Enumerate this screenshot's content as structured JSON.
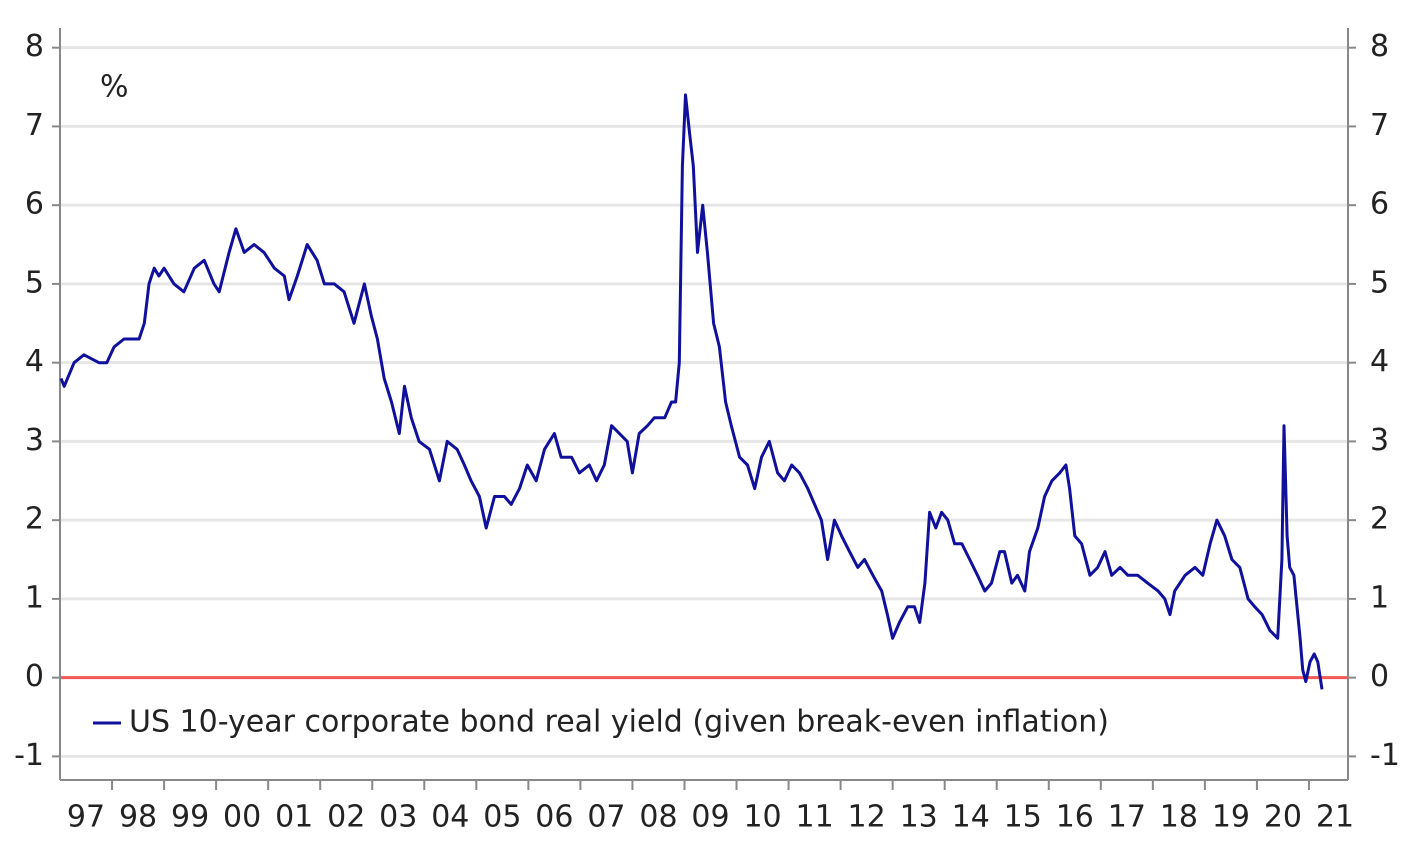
{
  "chart_data": {
    "type": "line",
    "y_label": "%",
    "x": [
      1997.02,
      1997.08,
      1997.27,
      1997.46,
      1997.75,
      1997.9,
      1998.04,
      1998.23,
      1998.52,
      1998.62,
      1998.71,
      1998.81,
      1998.9,
      1999.0,
      1999.19,
      1999.38,
      1999.58,
      1999.77,
      1999.96,
      2000.06,
      2000.25,
      2000.38,
      2000.54,
      2000.73,
      2000.92,
      2001.12,
      2001.31,
      2001.4,
      2001.56,
      2001.75,
      2001.94,
      2002.08,
      2002.27,
      2002.46,
      2002.65,
      2002.85,
      2002.98,
      2003.1,
      2003.23,
      2003.37,
      2003.52,
      2003.62,
      2003.75,
      2003.9,
      2004.1,
      2004.29,
      2004.44,
      2004.63,
      2004.77,
      2004.9,
      2005.06,
      2005.19,
      2005.35,
      2005.54,
      2005.67,
      2005.83,
      2005.98,
      2006.15,
      2006.31,
      2006.5,
      2006.63,
      2006.83,
      2006.98,
      2007.17,
      2007.31,
      2007.46,
      2007.6,
      2007.75,
      2007.9,
      2008.0,
      2008.13,
      2008.29,
      2008.42,
      2008.62,
      2008.75,
      2008.83,
      2008.9,
      2008.96,
      2009.02,
      2009.1,
      2009.17,
      2009.25,
      2009.35,
      2009.44,
      2009.56,
      2009.67,
      2009.79,
      2009.9,
      2010.06,
      2010.21,
      2010.35,
      2010.48,
      2010.63,
      2010.79,
      2010.92,
      2011.06,
      2011.21,
      2011.37,
      2011.5,
      2011.63,
      2011.75,
      2011.88,
      2012.02,
      2012.17,
      2012.33,
      2012.46,
      2012.62,
      2012.79,
      2012.9,
      2013.0,
      2013.13,
      2013.29,
      2013.42,
      2013.52,
      2013.62,
      2013.71,
      2013.83,
      2013.94,
      2014.06,
      2014.19,
      2014.33,
      2014.48,
      2014.63,
      2014.77,
      2014.9,
      2015.06,
      2015.15,
      2015.29,
      2015.4,
      2015.54,
      2015.63,
      2015.79,
      2015.92,
      2016.06,
      2016.21,
      2016.33,
      2016.4,
      2016.5,
      2016.63,
      2016.79,
      2016.94,
      2017.08,
      2017.21,
      2017.37,
      2017.52,
      2017.71,
      2017.9,
      2018.1,
      2018.23,
      2018.33,
      2018.42,
      2018.62,
      2018.81,
      2018.96,
      2019.1,
      2019.23,
      2019.38,
      2019.52,
      2019.67,
      2019.83,
      2019.96,
      2020.1,
      2020.25,
      2020.4,
      2020.48,
      2020.52,
      2020.58,
      2020.63,
      2020.71,
      2020.77,
      2020.83,
      2020.88,
      2020.94,
      2021.02,
      2021.1,
      2021.17,
      2021.25
    ],
    "series": [
      {
        "name": "US 10-year corporate bond real yield (given break-even inflation)",
        "color": "#10109c",
        "values": [
          3.8,
          3.7,
          4.0,
          4.1,
          4.0,
          4.0,
          4.2,
          4.3,
          4.3,
          4.5,
          5.0,
          5.2,
          5.1,
          5.2,
          5.0,
          4.9,
          5.2,
          5.3,
          5.0,
          4.9,
          5.4,
          5.7,
          5.4,
          5.5,
          5.4,
          5.2,
          5.1,
          4.8,
          5.1,
          5.5,
          5.3,
          5.0,
          5.0,
          4.9,
          4.5,
          5.0,
          4.6,
          4.3,
          3.8,
          3.5,
          3.1,
          3.7,
          3.3,
          3.0,
          2.9,
          2.5,
          3.0,
          2.9,
          2.7,
          2.5,
          2.3,
          1.9,
          2.3,
          2.3,
          2.2,
          2.4,
          2.7,
          2.5,
          2.9,
          3.1,
          2.8,
          2.8,
          2.6,
          2.7,
          2.5,
          2.7,
          3.2,
          3.1,
          3.0,
          2.6,
          3.1,
          3.2,
          3.3,
          3.3,
          3.5,
          3.5,
          4.0,
          6.5,
          7.4,
          6.9,
          6.5,
          5.4,
          6.0,
          5.4,
          4.5,
          4.2,
          3.5,
          3.2,
          2.8,
          2.7,
          2.4,
          2.8,
          3.0,
          2.6,
          2.5,
          2.7,
          2.6,
          2.4,
          2.2,
          2.0,
          1.5,
          2.0,
          1.8,
          1.6,
          1.4,
          1.5,
          1.3,
          1.1,
          0.8,
          0.5,
          0.7,
          0.9,
          0.9,
          0.7,
          1.2,
          2.1,
          1.9,
          2.1,
          2.0,
          1.7,
          1.7,
          1.5,
          1.3,
          1.1,
          1.2,
          1.6,
          1.6,
          1.2,
          1.3,
          1.1,
          1.6,
          1.9,
          2.3,
          2.5,
          2.6,
          2.7,
          2.4,
          1.8,
          1.7,
          1.3,
          1.4,
          1.6,
          1.3,
          1.4,
          1.3,
          1.3,
          1.2,
          1.1,
          1.0,
          0.8,
          1.1,
          1.3,
          1.4,
          1.3,
          1.7,
          2.0,
          1.8,
          1.5,
          1.4,
          1.0,
          0.9,
          0.8,
          0.6,
          0.5,
          1.5,
          3.2,
          1.8,
          1.4,
          1.3,
          0.9,
          0.5,
          0.1,
          -0.05,
          0.2,
          0.3,
          0.2,
          -0.15
        ]
      }
    ],
    "xlim": [
      1997.0,
      2021.75
    ],
    "xticks": [
      {
        "value": 1997.5,
        "label": "97"
      },
      {
        "value": 1998.5,
        "label": "98"
      },
      {
        "value": 1999.5,
        "label": "99"
      },
      {
        "value": 2000.5,
        "label": "00"
      },
      {
        "value": 2001.5,
        "label": "01"
      },
      {
        "value": 2002.5,
        "label": "02"
      },
      {
        "value": 2003.5,
        "label": "03"
      },
      {
        "value": 2004.5,
        "label": "04"
      },
      {
        "value": 2005.5,
        "label": "05"
      },
      {
        "value": 2006.5,
        "label": "06"
      },
      {
        "value": 2007.5,
        "label": "07"
      },
      {
        "value": 2008.5,
        "label": "08"
      },
      {
        "value": 2009.5,
        "label": "09"
      },
      {
        "value": 2010.5,
        "label": "10"
      },
      {
        "value": 2011.5,
        "label": "11"
      },
      {
        "value": 2012.5,
        "label": "12"
      },
      {
        "value": 2013.5,
        "label": "13"
      },
      {
        "value": 2014.5,
        "label": "14"
      },
      {
        "value": 2015.5,
        "label": "15"
      },
      {
        "value": 2016.5,
        "label": "16"
      },
      {
        "value": 2017.5,
        "label": "17"
      },
      {
        "value": 2018.5,
        "label": "18"
      },
      {
        "value": 2019.5,
        "label": "19"
      },
      {
        "value": 2020.5,
        "label": "20"
      },
      {
        "value": 2021.5,
        "label": "21"
      }
    ],
    "ylim": [
      -1.3,
      8.25
    ],
    "yticks": [
      -1,
      0,
      1,
      2,
      3,
      4,
      5,
      6,
      7,
      8
    ],
    "y2lim": [
      -1.3,
      8.25
    ],
    "y2ticks": [
      -1,
      0,
      1,
      2,
      3,
      4,
      5,
      6,
      7,
      8
    ],
    "grid": true,
    "reference_line": {
      "value": 0,
      "color": "#f25a5a"
    },
    "legend": "lower left"
  }
}
